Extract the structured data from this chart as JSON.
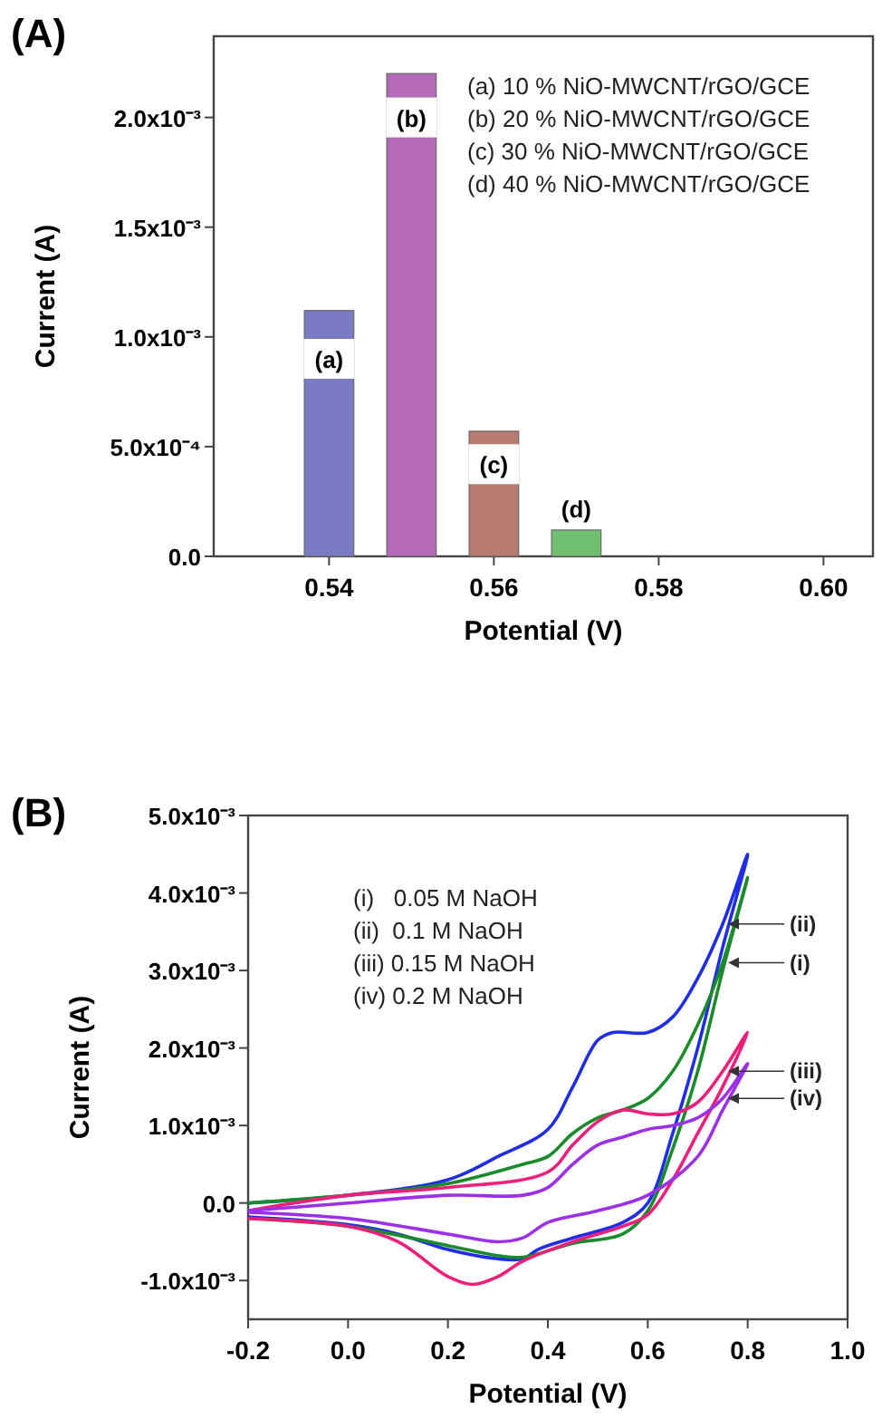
{
  "chart_data": [
    {
      "type": "bar",
      "title": "(A)",
      "xlabel": "Potential (V)",
      "ylabel": "Current (A)",
      "x": [
        0.54,
        0.55,
        0.56,
        0.57
      ],
      "values": [
        0.00112,
        0.0022,
        0.00057,
        0.00012
      ],
      "colors": [
        "#7b7bc4",
        "#b56ab9",
        "#b87a70",
        "#6fbf6f"
      ],
      "xlim": [
        0.526,
        0.606
      ],
      "xticks": [
        0.54,
        0.56,
        0.58,
        {
          "value": 0.6,
          "label": "0.60"
        }
      ],
      "ylim": [
        0,
        0.00237
      ],
      "yticks": [
        {
          "value": 0,
          "label": "0.0"
        },
        {
          "value": 0.0005,
          "label": "5.0x10⁻⁴"
        },
        {
          "value": 0.001,
          "label": "1.0x10⁻³"
        },
        {
          "value": 0.0015,
          "label": "1.5x10⁻³"
        },
        {
          "value": 0.002,
          "label": "2.0x10⁻³"
        }
      ],
      "annotations": [
        "(a) 10 % NiO-MWCNT/rGO/GCE",
        "(b) 20 % NiO-MWCNT/rGO/GCE",
        "(c) 30 % NiO-MWCNT/rGO/GCE",
        "(d) 40 % NiO-MWCNT/rGO/GCE",
        {
          "text": "(a)",
          "x": 0.54,
          "y": 0.0009
        },
        {
          "text": "(b)",
          "x": 0.55,
          "y": 0.002
        },
        {
          "text": "(c)",
          "x": 0.56,
          "y": 0.00042
        },
        {
          "text": "(d)",
          "x": 0.57,
          "y": 0.00022
        }
      ]
    },
    {
      "type": "line",
      "title": "(B)",
      "xlabel": "Potential (V)",
      "ylabel": "Current (A)",
      "xlim": [
        -0.2,
        1.0
      ],
      "xticks": [
        {
          "value": -0.2,
          "label": "-0.2"
        },
        {
          "value": 0,
          "label": "0.0"
        },
        0.2,
        0.4,
        0.6,
        0.8,
        {
          "value": 1,
          "label": "1.0"
        }
      ],
      "ylim": [
        -0.0015,
        0.005
      ],
      "yticks": [
        {
          "value": -0.001,
          "label": "-1.0x10⁻³"
        },
        {
          "value": 0,
          "label": "0.0"
        },
        {
          "value": 0.001,
          "label": "1.0x10⁻³"
        },
        {
          "value": 0.002,
          "label": "2.0x10⁻³"
        },
        {
          "value": 0.003,
          "label": "3.0x10⁻³"
        },
        {
          "value": 0.004,
          "label": "4.0x10⁻³"
        },
        {
          "value": 0.005,
          "label": "5.0x10⁻³"
        }
      ],
      "annotations": [
        "(i)   0.05 M NaOH",
        "(ii)  0.1 M NaOH",
        "(iii) 0.15 M NaOH",
        "(iv) 0.2 M NaOH"
      ],
      "series": [
        {
          "name": "(ii)",
          "color": "#1f2ee6",
          "x": [
            -0.2,
            0,
            0.2,
            0.3,
            0.4,
            0.45,
            0.5,
            0.53,
            0.6,
            0.65,
            0.7,
            0.75,
            0.8,
            0.75,
            0.7,
            0.65,
            0.6,
            0.55,
            0.45,
            0.38,
            0.35,
            0.3,
            0.2,
            0.1,
            0,
            -0.2
          ],
          "values": [
            0,
            0.0001,
            0.0003,
            0.0006,
            0.00095,
            0.0015,
            0.0021,
            0.0022,
            0.0022,
            0.0024,
            0.0029,
            0.0036,
            0.0045,
            0.0033,
            0.002,
            0.0009,
            0,
            -0.00025,
            -0.00045,
            -0.0006,
            -0.00072,
            -0.00072,
            -0.0006,
            -0.0004,
            -0.00028,
            -0.00018
          ]
        },
        {
          "name": "(i)",
          "color": "#1a8a2a",
          "x": [
            -0.2,
            0,
            0.2,
            0.35,
            0.4,
            0.45,
            0.5,
            0.55,
            0.6,
            0.65,
            0.7,
            0.75,
            0.8,
            0.75,
            0.7,
            0.65,
            0.6,
            0.55,
            0.45,
            0.35,
            0.3,
            0.2,
            0,
            -0.2
          ],
          "values": [
            0,
            0.0001,
            0.00025,
            0.0005,
            0.0006,
            0.0009,
            0.0011,
            0.0012,
            0.00135,
            0.0017,
            0.0023,
            0.0031,
            0.0042,
            0.003,
            0.0017,
            0.0007,
            -0.0001,
            -0.0004,
            -0.00052,
            -0.0007,
            -0.00068,
            -0.00055,
            -0.0003,
            -0.0002
          ]
        },
        {
          "name": "(iii)",
          "color": "#ee1f7a",
          "x": [
            -0.2,
            0,
            0.2,
            0.4,
            0.45,
            0.5,
            0.55,
            0.6,
            0.65,
            0.7,
            0.75,
            0.8,
            0.75,
            0.7,
            0.65,
            0.6,
            0.55,
            0.45,
            0.35,
            0.3,
            0.25,
            0.2,
            0.1,
            0,
            -0.2
          ],
          "values": [
            -0.0001,
            0.0001,
            0.0002,
            0.0004,
            0.00075,
            0.00105,
            0.0012,
            0.00115,
            0.00115,
            0.0013,
            0.0017,
            0.0022,
            0.0015,
            0.0009,
            0.0003,
            -0.00015,
            -0.0003,
            -0.0005,
            -0.00075,
            -0.00095,
            -0.00105,
            -0.00095,
            -0.0005,
            -0.0003,
            -0.0002
          ]
        },
        {
          "name": "(iv)",
          "color": "#9b30e8",
          "x": [
            -0.2,
            0,
            0.2,
            0.35,
            0.4,
            0.45,
            0.5,
            0.55,
            0.6,
            0.65,
            0.7,
            0.75,
            0.8,
            0.75,
            0.7,
            0.6,
            0.5,
            0.4,
            0.35,
            0.3,
            0.2,
            0,
            -0.2
          ],
          "values": [
            -0.0001,
            0,
            0.0001,
            0.0001,
            0.0002,
            0.0005,
            0.00075,
            0.00085,
            0.00095,
            0.001,
            0.0011,
            0.00135,
            0.0018,
            0.0012,
            0.0006,
            0.0001,
            -0.0001,
            -0.00025,
            -0.00045,
            -0.0005,
            -0.0004,
            -0.0002,
            -0.00012
          ]
        }
      ]
    }
  ]
}
